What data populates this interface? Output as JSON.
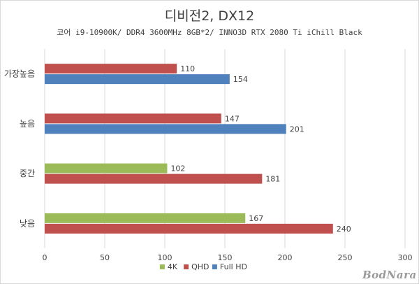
{
  "chart_data": {
    "type": "bar",
    "orientation": "horizontal",
    "title": "디비전2, DX12",
    "subtitle": "코어 i9-10900K/ DDR4 3600MHz 8GB*2/ INNO3D RTX 2080 Ti iChill Black",
    "categories": [
      "가장높음",
      "높음",
      "중간",
      "낮음"
    ],
    "series": [
      {
        "name": "4K",
        "color": "#9bbb59",
        "values": [
          null,
          null,
          102,
          167
        ]
      },
      {
        "name": "QHD",
        "color": "#c0504d",
        "values": [
          110,
          147,
          181,
          240
        ]
      },
      {
        "name": "Full HD",
        "color": "#4f81bd",
        "values": [
          154,
          201,
          null,
          null
        ]
      }
    ],
    "xlim": [
      0,
      300
    ],
    "xticks": [
      0,
      50,
      100,
      150,
      200,
      250,
      300
    ],
    "grid": true,
    "legend": "bottom"
  },
  "watermark": "BodNara"
}
